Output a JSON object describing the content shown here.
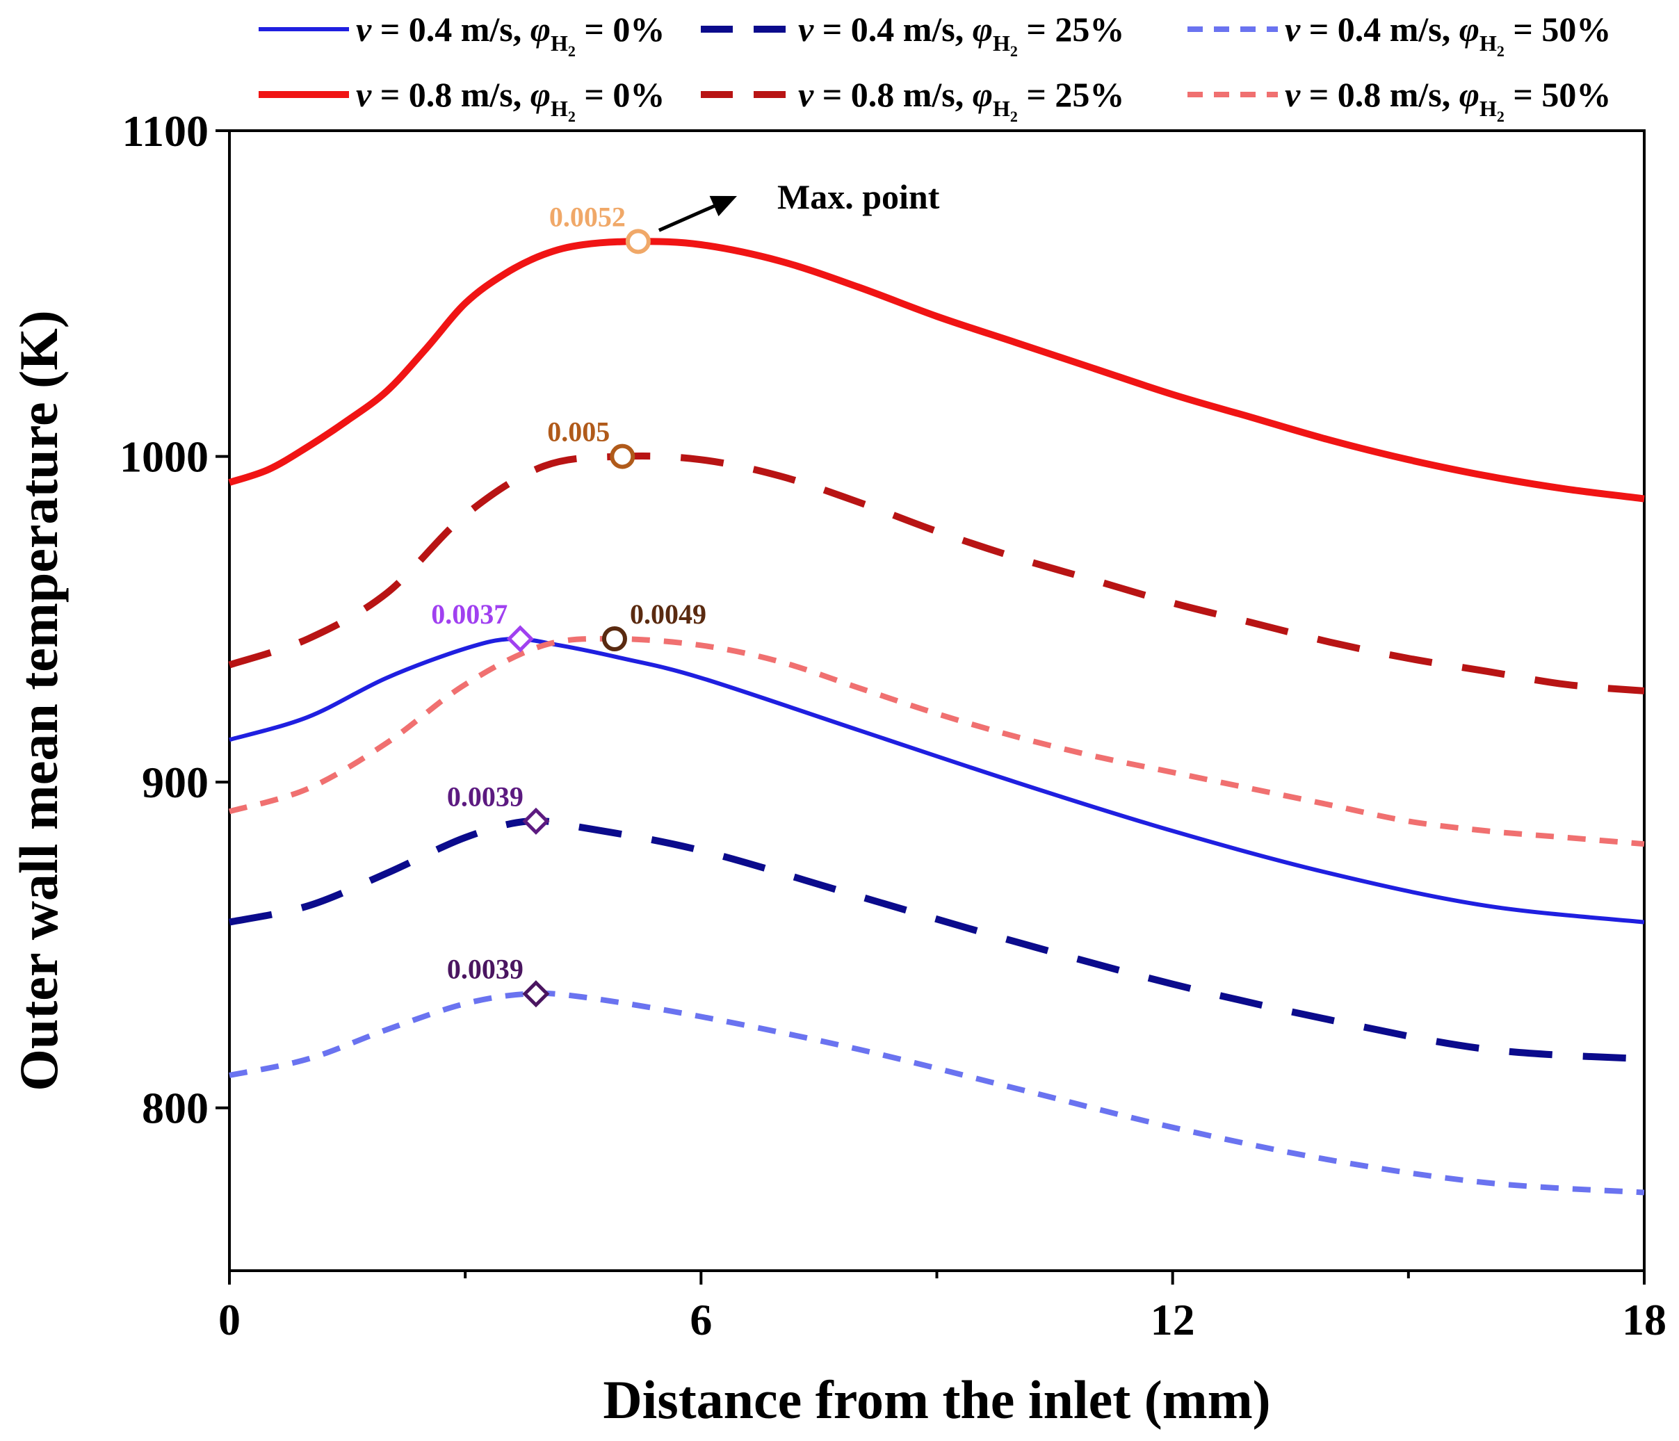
{
  "chart_data": {
    "type": "line",
    "title": "",
    "xlabel": "Distance from the inlet (mm)",
    "ylabel": "Outer wall mean temperature (K)",
    "xlim": [
      0,
      18
    ],
    "ylim": [
      750,
      1100
    ],
    "xticks": [
      0,
      6,
      12,
      18
    ],
    "xticks_minor": [
      3,
      9,
      15
    ],
    "yticks": [
      800,
      900,
      1000,
      1100
    ],
    "grid": false,
    "legend_position": "top",
    "series": [
      {
        "name": "v = 0.4 m/s, φH2 = 0%",
        "legend": {
          "pre": "v = 0.4 m/s, ",
          "phi": "φ",
          "sub": "H",
          "subsub": "2",
          "post": " = 0%"
        },
        "color": "#1f1fe0",
        "dash": "solid",
        "width": 6,
        "x": [
          0,
          1,
          2,
          3,
          3.6,
          4.2,
          5,
          6,
          8,
          10,
          12,
          14,
          16,
          18
        ],
        "y": [
          913,
          920,
          932,
          941,
          944,
          942,
          938,
          932,
          916,
          900,
          885,
          872,
          862,
          857
        ],
        "max_point": {
          "x": 3.7,
          "y": 944,
          "label": "0.0037",
          "shape": "diamond",
          "color": "#a040f0"
        }
      },
      {
        "name": "v = 0.4 m/s, φH2 = 25%",
        "legend": {
          "pre": "v = 0.4 m/s, ",
          "phi": "φ",
          "sub": "H",
          "subsub": "2",
          "post": " = 25%"
        },
        "color": "#0b0b8c",
        "dash": "long",
        "width": 10,
        "x": [
          0,
          1,
          2,
          3,
          3.8,
          4.5,
          6,
          8,
          10,
          12,
          14,
          16,
          18
        ],
        "y": [
          857,
          862,
          872,
          883,
          888,
          886,
          879,
          865,
          851,
          838,
          827,
          818,
          815
        ],
        "max_point": {
          "x": 3.9,
          "y": 888,
          "label": "0.0039",
          "shape": "diamond",
          "color": "#5c1a80"
        }
      },
      {
        "name": "v = 0.4 m/s, φH2 = 50%",
        "legend": {
          "pre": "v = 0.4 m/s, ",
          "phi": "φ",
          "sub": "H",
          "subsub": "2",
          "post": " = 50%"
        },
        "color": "#6a73f0",
        "dash": "short",
        "width": 8,
        "x": [
          0,
          1,
          2,
          3,
          3.8,
          4.5,
          6,
          8,
          10,
          12,
          14,
          16,
          18
        ],
        "y": [
          810,
          815,
          824,
          832,
          835,
          834,
          828,
          818,
          806,
          794,
          784,
          777,
          774
        ],
        "max_point": {
          "x": 3.9,
          "y": 835,
          "label": "0.0039",
          "shape": "diamond",
          "color": "#4a1560"
        }
      },
      {
        "name": "v = 0.8 m/s, φH2 = 0%",
        "legend": {
          "pre": "v = 0.8 m/s, ",
          "phi": "φ",
          "sub": "H",
          "subsub": "2",
          "post": " = 0%"
        },
        "color": "#f01414",
        "dash": "solid",
        "width": 10,
        "x": [
          0,
          0.5,
          1,
          1.5,
          2,
          2.5,
          3,
          3.5,
          4,
          4.5,
          5.2,
          6,
          7,
          8,
          9,
          10,
          11,
          12,
          13,
          14,
          15,
          16,
          17,
          18
        ],
        "y": [
          992,
          996,
          1003,
          1011,
          1020,
          1033,
          1047,
          1056,
          1062,
          1065,
          1066,
          1065,
          1060,
          1052,
          1043,
          1035,
          1027,
          1019,
          1012,
          1005,
          999,
          994,
          990,
          987
        ],
        "max_point": {
          "x": 5.2,
          "y": 1066,
          "label": "0.0052",
          "shape": "circle",
          "color": "#f0a868"
        }
      },
      {
        "name": "v = 0.8 m/s, φH2 = 25%",
        "legend": {
          "pre": "v = 0.8 m/s, ",
          "phi": "φ",
          "sub": "H",
          "subsub": "2",
          "post": " = 25%"
        },
        "color": "#b81414",
        "dash": "long",
        "width": 10,
        "x": [
          0,
          1,
          2,
          3,
          4,
          5,
          6,
          7,
          8,
          9,
          10,
          11,
          12,
          13,
          14,
          15,
          16,
          17,
          18
        ],
        "y": [
          936,
          944,
          958,
          982,
          997,
          1000,
          999,
          994,
          986,
          977,
          969,
          962,
          955,
          949,
          943,
          938,
          934,
          930,
          928
        ],
        "max_point": {
          "x": 5.0,
          "y": 1000,
          "label": "0.005",
          "shape": "circle",
          "color": "#b05a1a"
        }
      },
      {
        "name": "v = 0.8 m/s, φH2 = 50%",
        "legend": {
          "pre": "v = 0.8 m/s, ",
          "phi": "φ",
          "sub": "H",
          "subsub": "2",
          "post": " = 50%"
        },
        "color": "#f07070",
        "dash": "short",
        "width": 8,
        "x": [
          0,
          1,
          2,
          3,
          4,
          4.9,
          6,
          7,
          8,
          9,
          10,
          11,
          12,
          13,
          14,
          15,
          16,
          17,
          18
        ],
        "y": [
          891,
          898,
          912,
          930,
          942,
          944,
          942,
          937,
          929,
          921,
          914,
          908,
          903,
          898,
          893,
          888,
          885,
          883,
          881
        ],
        "max_point": {
          "x": 4.9,
          "y": 944,
          "label": "0.0049",
          "shape": "circle",
          "color": "#5a2a10"
        }
      }
    ],
    "annotation": {
      "text": "Max. point"
    }
  }
}
